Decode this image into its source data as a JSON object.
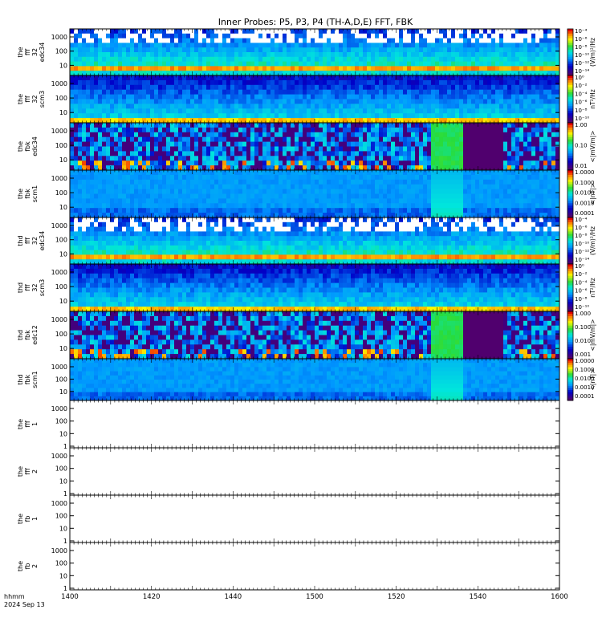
{
  "title": "Inner Probes: P5, P3, P4 (TH-A,D,E) FFT, FBK",
  "footer": {
    "line1": "hhmm",
    "line2": "2024 Sep 13"
  },
  "colors": {
    "axis": "#000000",
    "background": "#ffffff"
  },
  "chart_data": {
    "type": "heatmap",
    "title": "Inner Probes: P5, P3, P4 (TH-A,D,E) FFT, FBK",
    "x": {
      "ticks": [
        1400,
        1420,
        1440,
        1500,
        1520,
        1540,
        1600
      ],
      "range": [
        1400,
        1600
      ],
      "units": "hhmm"
    },
    "panels": [
      {
        "label": [
          "the",
          "fff",
          "32",
          "edc34"
        ],
        "kind": "fft-e",
        "yscale": "log",
        "yticks": [
          "1000",
          "100",
          "10"
        ],
        "zlabel": "(V/m)²/Hz",
        "zticks": [
          "10⁻⁴",
          "10⁻⁶",
          "10⁻⁸",
          "10⁻¹⁰",
          "10⁻¹²",
          "10⁻¹⁴"
        ]
      },
      {
        "label": [
          "the",
          "fff",
          "32",
          "scm3"
        ],
        "kind": "fft-b",
        "yscale": "log",
        "yticks": [
          "1000",
          "100",
          "10"
        ],
        "zlabel": "nT²/Hz",
        "zticks": [
          "10⁰",
          "10⁻²",
          "10⁻⁴",
          "10⁻⁶",
          "10⁻⁸",
          "10⁻¹⁰"
        ]
      },
      {
        "label": [
          "the",
          "fbk",
          "edc34"
        ],
        "kind": "fbk-e",
        "yscale": "log",
        "yticks": [
          "1000",
          "100",
          "10"
        ],
        "zlabel": "<|mV/m|>",
        "zticks": [
          "1.00",
          "0.10",
          "0.01"
        ]
      },
      {
        "label": [
          "the",
          "fbk",
          "scm1"
        ],
        "kind": "fbk-b",
        "yscale": "log",
        "yticks": [
          "1000",
          "100",
          "10"
        ],
        "zlabel": "<|nT|>",
        "zticks": [
          "1.0000",
          "0.1000",
          "0.0100",
          "0.0010",
          "0.0001"
        ]
      },
      {
        "label": [
          "thd",
          "fff",
          "32",
          "edc34"
        ],
        "kind": "fft-e",
        "yscale": "log",
        "yticks": [
          "1000",
          "100",
          "10"
        ],
        "zlabel": "(V/m)²/Hz",
        "zticks": [
          "10⁻⁴",
          "10⁻⁶",
          "10⁻⁸",
          "10⁻¹⁰",
          "10⁻¹²",
          "10⁻¹⁴"
        ]
      },
      {
        "label": [
          "thd",
          "fff",
          "32",
          "scm3"
        ],
        "kind": "fft-b",
        "yscale": "log",
        "yticks": [
          "1000",
          "100",
          "10"
        ],
        "zlabel": "nT²/Hz",
        "zticks": [
          "10⁰",
          "10⁻²",
          "10⁻⁴",
          "10⁻⁶",
          "10⁻⁸",
          "10⁻¹⁰"
        ]
      },
      {
        "label": [
          "thd",
          "fbk",
          "edc12"
        ],
        "kind": "fbk-e",
        "yscale": "log",
        "yticks": [
          "1000",
          "100",
          "10"
        ],
        "zlabel": "<|mV/m|>",
        "zticks": [
          "1.000",
          "0.100",
          "0.010",
          "0.001"
        ]
      },
      {
        "label": [
          "thd",
          "fbk",
          "scm1"
        ],
        "kind": "fbk-b",
        "yscale": "log",
        "yticks": [
          "1000",
          "100",
          "10"
        ],
        "zlabel": "<|nT|>",
        "zticks": [
          "1.0000",
          "0.1000",
          "0.0100",
          "0.0010",
          "0.0001"
        ]
      },
      {
        "label": [
          "the",
          "fff",
          "1"
        ],
        "kind": "empty",
        "yscale": "log",
        "yticks": [
          "1000",
          "100",
          "10",
          "1"
        ]
      },
      {
        "label": [
          "the",
          "fff",
          "2"
        ],
        "kind": "empty",
        "yscale": "log",
        "yticks": [
          "1000",
          "100",
          "10",
          "1"
        ]
      },
      {
        "label": [
          "the",
          "fb",
          "1"
        ],
        "kind": "empty",
        "yscale": "log",
        "yticks": [
          "1000",
          "100",
          "10",
          "1"
        ]
      },
      {
        "label": [
          "the",
          "fb",
          "2"
        ],
        "kind": "empty",
        "yscale": "log",
        "yticks": [
          "1000",
          "100",
          "10",
          "1"
        ]
      }
    ]
  }
}
